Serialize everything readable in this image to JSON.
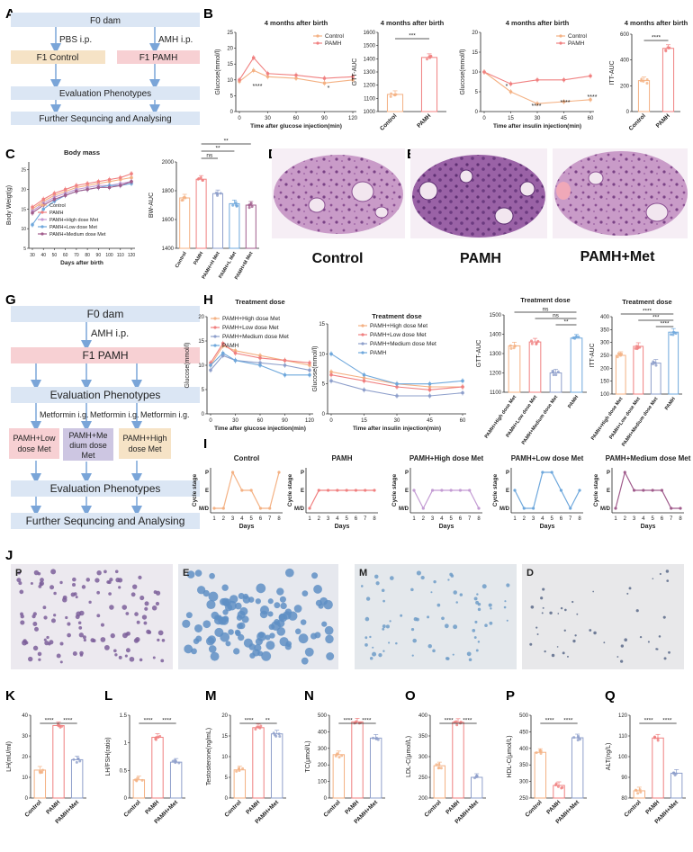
{
  "colors": {
    "control": "#f4b183",
    "pamh": "#f08080",
    "met": "#8e9fcb",
    "high": "#c39bd3",
    "low": "#6fa8dc",
    "medium": "#a05c8c",
    "box_blue": "#dbe6f4",
    "box_beige": "#f6e3c6",
    "box_pink": "#f7d0d3",
    "box_purple": "#cdc6e2",
    "arrow": "#7aa5d8"
  },
  "panels": {
    "A": "A",
    "B": "B",
    "C": "C",
    "D": "D",
    "E": "E",
    "F": "F",
    "G": "G",
    "H": "H",
    "I": "I",
    "J": "J",
    "K": "K",
    "L": "L",
    "M": "M",
    "N": "N",
    "O": "O",
    "P": "P",
    "Q": "Q"
  },
  "flowA": {
    "f0": "F0 dam",
    "pbs": "PBS i.p.",
    "amh": "AMH i.p.",
    "control": "F1 Control",
    "pamh": "F1  PAMH",
    "eval": "Evaluation Phenotypes",
    "further": "Further Sequncing and Analysing"
  },
  "flowG": {
    "f0": "F0 dam",
    "amh": "AMH i.p.",
    "f1": "F1  PAMH",
    "eval1": "Evaluation Phenotypes",
    "met1": "Metformin i.g.",
    "met2": "Metformin i.g.",
    "met3": "Metformin i.g.",
    "low": [
      "PAMH+Low",
      "dose Met"
    ],
    "med": [
      "PAMH+Me",
      "dium dose",
      "Met"
    ],
    "high": [
      "PAMH+High",
      "dose Met"
    ],
    "eval2": "Evaluation Phenotypes",
    "further": "Further Sequncing and Analysing"
  },
  "histology": {
    "control": "Control",
    "pamh": "PAMH",
    "met": "PAMH+Met"
  },
  "smears": [
    "P",
    "E",
    "M",
    "D"
  ],
  "chart_data": [
    {
      "id": "B_gtt",
      "type": "line",
      "title": "4 months after birth",
      "xlabel": "Time after glucose injection(min)",
      "ylabel": "Glucose(mmol/l)",
      "x": [
        0,
        15,
        30,
        60,
        90,
        120
      ],
      "xticks": [
        0,
        30,
        60,
        90,
        120
      ],
      "yticks": [
        0,
        5,
        10,
        15,
        20,
        25
      ],
      "ylim": [
        0,
        25
      ],
      "legend": [
        "Control",
        "PAMH"
      ],
      "series": [
        {
          "name": "Control",
          "values": [
            9.5,
            13,
            11,
            10.5,
            9,
            10
          ]
        },
        {
          "name": "PAMH",
          "values": [
            10,
            17,
            12,
            11.5,
            10.5,
            11
          ]
        }
      ],
      "annotations": [
        "****",
        "*"
      ]
    },
    {
      "id": "B_gttauc",
      "type": "bar",
      "title": "4 months after birth",
      "ylabel": "GTT-AUC",
      "categories": [
        "Control",
        "PAMH"
      ],
      "values": [
        1130,
        1410
      ],
      "yticks": [
        1000,
        1100,
        1200,
        1300,
        1400,
        1500,
        1600
      ],
      "ylim": [
        1000,
        1600
      ],
      "significance": [
        "***"
      ]
    },
    {
      "id": "B_itt",
      "type": "line",
      "title": "4 months after birth",
      "xlabel": "Time after insulin injection(min)",
      "ylabel": "Glucose(mmol/l)",
      "x": [
        0,
        15,
        30,
        45,
        60
      ],
      "xticks": [
        0,
        15,
        30,
        45,
        60
      ],
      "yticks": [
        0,
        5,
        10,
        15,
        20
      ],
      "ylim": [
        0,
        20
      ],
      "legend": [
        "Control",
        "PAMH"
      ],
      "series": [
        {
          "name": "Control",
          "values": [
            10,
            5,
            2,
            2.5,
            3
          ]
        },
        {
          "name": "PAMH",
          "values": [
            10,
            7,
            8,
            8,
            9
          ]
        }
      ],
      "annotations": [
        "*",
        "****",
        "****",
        "****"
      ]
    },
    {
      "id": "B_ittauc",
      "type": "bar",
      "title": "4 months after birth",
      "ylabel": "ITT-AUC",
      "categories": [
        "Control",
        "PAMH"
      ],
      "values": [
        240,
        490
      ],
      "yticks": [
        0,
        200,
        400,
        600
      ],
      "ylim": [
        0,
        600
      ],
      "significance": [
        "****"
      ]
    },
    {
      "id": "C_body",
      "type": "line",
      "title": "Body mass",
      "xlabel": "Days after birth",
      "ylabel": "Body Weigt(g)",
      "x": [
        30,
        40,
        50,
        60,
        70,
        80,
        90,
        100,
        110,
        120
      ],
      "xticks": [
        30,
        40,
        50,
        60,
        70,
        80,
        90,
        100,
        110,
        120
      ],
      "yticks": [
        5,
        10,
        15,
        20,
        25
      ],
      "ylim": [
        5,
        27
      ],
      "legend": [
        "Control",
        "PAMH",
        "PAMH+High dose Met",
        "PAMH+Low dose Met",
        "PAMH+Medium dose Met"
      ],
      "series": [
        {
          "name": "Control",
          "values": [
            15,
            17,
            18.5,
            19.5,
            20.5,
            21,
            21.5,
            22,
            22.5,
            23
          ]
        },
        {
          "name": "PAMH",
          "values": [
            15.5,
            17.5,
            19,
            20,
            21,
            21.5,
            22,
            22.5,
            23,
            24
          ]
        },
        {
          "name": "PAMH+High dose Met",
          "values": [
            14.5,
            16.5,
            18,
            19,
            20,
            20.5,
            21,
            21,
            21.5,
            22
          ]
        },
        {
          "name": "PAMH+Low dose Met",
          "values": [
            11,
            15,
            17,
            18.5,
            19.5,
            20,
            20.5,
            21,
            21,
            21.5
          ]
        },
        {
          "name": "PAMH+Medium dose Met",
          "values": [
            14,
            16,
            17.5,
            18.5,
            19.5,
            20,
            20.5,
            20.5,
            21,
            22
          ]
        }
      ]
    },
    {
      "id": "C_bwauc",
      "type": "bar",
      "ylabel": "BW-AUC",
      "categories": [
        "Control",
        "PAMH",
        "PAMH+H Met",
        "PAMH+L Met",
        "PAMH+M Met"
      ],
      "values": [
        1750,
        1880,
        1780,
        1710,
        1700
      ],
      "yticks": [
        1400,
        1600,
        1800,
        2000
      ],
      "ylim": [
        1400,
        2000
      ],
      "significance": [
        "**",
        "**",
        "ns"
      ]
    },
    {
      "id": "H_gtt",
      "type": "line",
      "title": "Treatment dose",
      "xlabel": "Time after glucose injection(min)",
      "ylabel": "Glucose(mmol/l)",
      "x": [
        0,
        15,
        30,
        60,
        90,
        120
      ],
      "xticks": [
        0,
        30,
        60,
        90,
        120
      ],
      "yticks": [
        0,
        5,
        10,
        15,
        20
      ],
      "ylim": [
        0,
        20
      ],
      "legend": [
        "PAMH+High dose Met",
        "PAMH+Low dose Met",
        "PAMH+Medium dose Met",
        "PAMH"
      ],
      "series": [
        {
          "name": "PAMH+High dose Met",
          "values": [
            10,
            14,
            13,
            12,
            11,
            10
          ]
        },
        {
          "name": "PAMH+Low dose Met",
          "values": [
            10.5,
            14.5,
            12.5,
            11.5,
            11,
            10.5
          ]
        },
        {
          "name": "PAMH+Medium dose Met",
          "values": [
            9,
            12,
            11,
            10.5,
            10,
            9
          ]
        },
        {
          "name": "PAMH",
          "values": [
            10,
            12.5,
            11,
            10,
            8,
            8
          ]
        }
      ]
    },
    {
      "id": "H_itt",
      "type": "line",
      "title": "Treatment dose",
      "xlabel": "Time after insulin injection(min)",
      "ylabel": "Glucose(mmol/l)",
      "x": [
        0,
        15,
        30,
        45,
        60
      ],
      "xticks": [
        0,
        15,
        30,
        45,
        60
      ],
      "yticks": [
        0,
        5,
        10,
        15
      ],
      "ylim": [
        0,
        15
      ],
      "legend": [
        "PAMH+High dose Met",
        "PAMH+Low dose Met",
        "PAMH+Medium dose Met",
        "PAMH"
      ],
      "series": [
        {
          "name": "PAMH+High dose Met",
          "values": [
            7,
            6,
            5,
            4.5,
            4.5
          ]
        },
        {
          "name": "PAMH+Low dose Met",
          "values": [
            6.5,
            5.5,
            4.5,
            4,
            4.5
          ]
        },
        {
          "name": "PAMH+Medium dose Met",
          "values": [
            5.5,
            4,
            3,
            3,
            3.5
          ]
        },
        {
          "name": "PAMH",
          "values": [
            10,
            6.5,
            5,
            5,
            5.5
          ]
        }
      ]
    },
    {
      "id": "H_gttauc",
      "type": "bar",
      "title": "Treatment dose",
      "ylabel": "GTT-AUC",
      "categories": [
        "PAMH+High dose Met",
        "PAMH+Low dose Met",
        "PAMH+Medium dose Met",
        "PAMH"
      ],
      "values": [
        1340,
        1360,
        1200,
        1380
      ],
      "yticks": [
        1100,
        1200,
        1300,
        1400,
        1500
      ],
      "ylim": [
        1100,
        1500
      ],
      "significance": [
        "ns",
        "ns",
        "**"
      ]
    },
    {
      "id": "H_ittauc",
      "type": "bar",
      "title": "Treatment dose",
      "ylabel": "ITT-AUC",
      "categories": [
        "PAMH+High dose Met",
        "PAMH+Low dose Met",
        "PAMH+Medium dose Met",
        "PAMH"
      ],
      "values": [
        250,
        285,
        220,
        340
      ],
      "yticks": [
        100,
        150,
        200,
        250,
        300,
        350,
        400
      ],
      "ylim": [
        100,
        400
      ],
      "significance": [
        "****",
        "***",
        "****"
      ]
    },
    {
      "id": "I_cycles",
      "type": "line",
      "xlabel": "Days",
      "ylabel": "Cycle stage",
      "x": [
        1,
        2,
        3,
        4,
        5,
        6,
        7,
        8
      ],
      "ycategories": [
        "M/D",
        "E",
        "P"
      ],
      "series": [
        {
          "name": "Control",
          "values": [
            0,
            0,
            2,
            1,
            1,
            0,
            0,
            2
          ]
        },
        {
          "name": "PAMH",
          "values": [
            0,
            1,
            1,
            1,
            1,
            1,
            1,
            1
          ]
        },
        {
          "name": "PAMH+High dose Met",
          "values": [
            1,
            0,
            1,
            1,
            1,
            1,
            1,
            0
          ]
        },
        {
          "name": "PAMH+Low dose Met",
          "values": [
            1,
            0,
            0,
            2,
            2,
            1,
            0,
            1
          ]
        },
        {
          "name": "PAMH+Medium dose Met",
          "values": [
            0,
            2,
            1,
            1,
            1,
            1,
            0,
            0
          ]
        }
      ]
    },
    {
      "id": "K_lh",
      "type": "bar",
      "ylabel": "LH(mU/ml)",
      "categories": [
        "Control",
        "PAMH",
        "PAMH+Met"
      ],
      "values": [
        13.5,
        35,
        18.5
      ],
      "yticks": [
        0,
        10,
        20,
        30,
        40
      ],
      "ylim": [
        0,
        40
      ],
      "significance": [
        "****",
        "****"
      ]
    },
    {
      "id": "L_lhfsh",
      "type": "bar",
      "ylabel": "LH/FSH(ratio)",
      "categories": [
        "Control",
        "PAMH",
        "PAMH+Met"
      ],
      "values": [
        0.33,
        1.1,
        0.65
      ],
      "yticks": [
        0,
        0.5,
        1.0,
        1.5
      ],
      "ylim": [
        0,
        1.5
      ],
      "significance": [
        "****",
        "****"
      ]
    },
    {
      "id": "M_t",
      "type": "bar",
      "ylabel": "Testosterone(ng/mL)",
      "categories": [
        "Control",
        "PAMH",
        "PAMH+Met"
      ],
      "values": [
        6.8,
        17,
        15.5
      ],
      "yticks": [
        0,
        5,
        10,
        15,
        20
      ],
      "ylim": [
        0,
        20
      ],
      "significance": [
        "****",
        "**"
      ]
    },
    {
      "id": "N_tc",
      "type": "bar",
      "ylabel": "TC(μmol/L)",
      "categories": [
        "Control",
        "PAMH",
        "PAMH+Met"
      ],
      "values": [
        262,
        460,
        362
      ],
      "yticks": [
        0,
        100,
        200,
        300,
        400,
        500
      ],
      "ylim": [
        0,
        500
      ],
      "significance": [
        "****",
        "****"
      ]
    },
    {
      "id": "O_ldl",
      "type": "bar",
      "ylabel": "LDL-C(μmol/L)",
      "categories": [
        "Control",
        "PAMH",
        "PAMH+Met"
      ],
      "values": [
        278,
        383,
        250
      ],
      "yticks": [
        200,
        250,
        300,
        350,
        400
      ],
      "ylim": [
        200,
        400
      ],
      "significance": [
        "****",
        "****"
      ]
    },
    {
      "id": "P_hdl",
      "type": "bar",
      "ylabel": "HDL-C(μmol/L)",
      "categories": [
        "Control",
        "PAMH",
        "PAMH+Met"
      ],
      "values": [
        388,
        288,
        432
      ],
      "yticks": [
        250,
        300,
        350,
        400,
        450,
        500
      ],
      "ylim": [
        250,
        500
      ],
      "significance": [
        "****",
        "****"
      ]
    },
    {
      "id": "Q_alt",
      "type": "bar",
      "ylabel": "ALT(ng/L)",
      "categories": [
        "Control",
        "PAMH",
        "PAMH+Met"
      ],
      "values": [
        83.5,
        109,
        92
      ],
      "yticks": [
        80,
        90,
        100,
        110,
        120
      ],
      "ylim": [
        80,
        120
      ],
      "significance": [
        "****",
        "****"
      ]
    }
  ]
}
